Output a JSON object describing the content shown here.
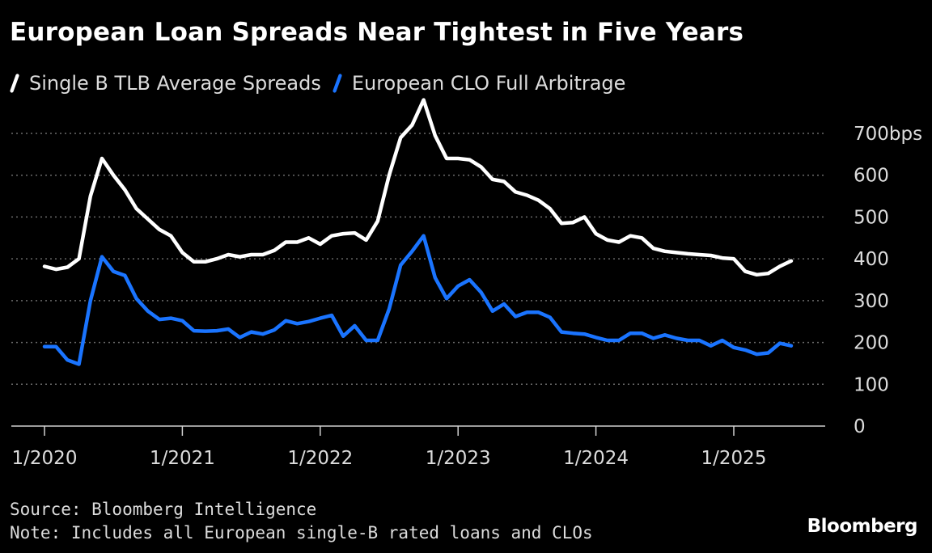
{
  "title": "European Loan Spreads Near Tightest in Five Years",
  "source": "Source: Bloomberg Intelligence",
  "note": "Note: Includes all European single-B rated loans and CLOs",
  "brand": "Bloomberg",
  "colors": {
    "background": "#000000",
    "series_1": "#ffffff",
    "series_2": "#1a74ff",
    "grid": "#6a6a6a",
    "text": "#dcdcdc"
  },
  "chart_data": {
    "type": "line",
    "title": "European Loan Spreads Near Tightest in Five Years",
    "xlabel": "",
    "ylabel": "",
    "y_unit": "bps",
    "ylim": [
      0,
      700
    ],
    "yticks": [
      0,
      100,
      200,
      300,
      400,
      500,
      600,
      700
    ],
    "ytick_labels": [
      "0",
      "100",
      "200",
      "300",
      "400",
      "500",
      "600",
      "700bps"
    ],
    "xlim": [
      "2020-01",
      "2025-06"
    ],
    "xticks": [
      "2020-01",
      "2021-01",
      "2022-01",
      "2023-01",
      "2024-01",
      "2025-01"
    ],
    "xtick_labels": [
      "1/2020",
      "1/2021",
      "1/2022",
      "1/2023",
      "1/2024",
      "1/2025"
    ],
    "grid": "horizontal dotted",
    "legend_position": "top-left",
    "x": [
      "2020-01",
      "2020-02",
      "2020-03",
      "2020-04",
      "2020-05",
      "2020-06",
      "2020-07",
      "2020-08",
      "2020-09",
      "2020-10",
      "2020-11",
      "2020-12",
      "2021-01",
      "2021-02",
      "2021-03",
      "2021-04",
      "2021-05",
      "2021-06",
      "2021-07",
      "2021-08",
      "2021-09",
      "2021-10",
      "2021-11",
      "2021-12",
      "2022-01",
      "2022-02",
      "2022-03",
      "2022-04",
      "2022-05",
      "2022-06",
      "2022-07",
      "2022-08",
      "2022-09",
      "2022-10",
      "2022-11",
      "2022-12",
      "2023-01",
      "2023-02",
      "2023-03",
      "2023-04",
      "2023-05",
      "2023-06",
      "2023-07",
      "2023-08",
      "2023-09",
      "2023-10",
      "2023-11",
      "2023-12",
      "2024-01",
      "2024-02",
      "2024-03",
      "2024-04",
      "2024-05",
      "2024-06",
      "2024-07",
      "2024-08",
      "2024-09",
      "2024-10",
      "2024-11",
      "2024-12",
      "2025-01",
      "2025-02",
      "2025-03",
      "2025-04",
      "2025-05",
      "2025-06"
    ],
    "series": [
      {
        "name": "Single B TLB Average Spreads",
        "values": [
          382,
          375,
          380,
          400,
          550,
          640,
          600,
          565,
          520,
          495,
          470,
          455,
          415,
          393,
          393,
          400,
          410,
          405,
          410,
          410,
          420,
          440,
          440,
          450,
          435,
          455,
          460,
          462,
          445,
          490,
          600,
          690,
          720,
          780,
          695,
          640,
          640,
          637,
          620,
          590,
          585,
          560,
          552,
          540,
          520,
          485,
          487,
          500,
          460,
          445,
          440,
          455,
          450,
          425,
          418,
          415,
          412,
          410,
          408,
          402,
          400,
          370,
          362,
          365,
          382,
          395
        ]
      },
      {
        "name": "European CLO Full Arbitrage",
        "values": [
          190,
          190,
          158,
          148,
          300,
          405,
          370,
          360,
          305,
          275,
          255,
          258,
          252,
          228,
          227,
          228,
          232,
          212,
          225,
          220,
          230,
          252,
          245,
          250,
          258,
          265,
          215,
          240,
          205,
          205,
          280,
          385,
          418,
          455,
          355,
          305,
          335,
          350,
          320,
          275,
          292,
          262,
          272,
          272,
          260,
          225,
          222,
          220,
          212,
          205,
          205,
          222,
          222,
          210,
          218,
          210,
          205,
          205,
          192,
          205,
          188,
          182,
          172,
          175,
          198,
          192
        ]
      }
    ]
  }
}
